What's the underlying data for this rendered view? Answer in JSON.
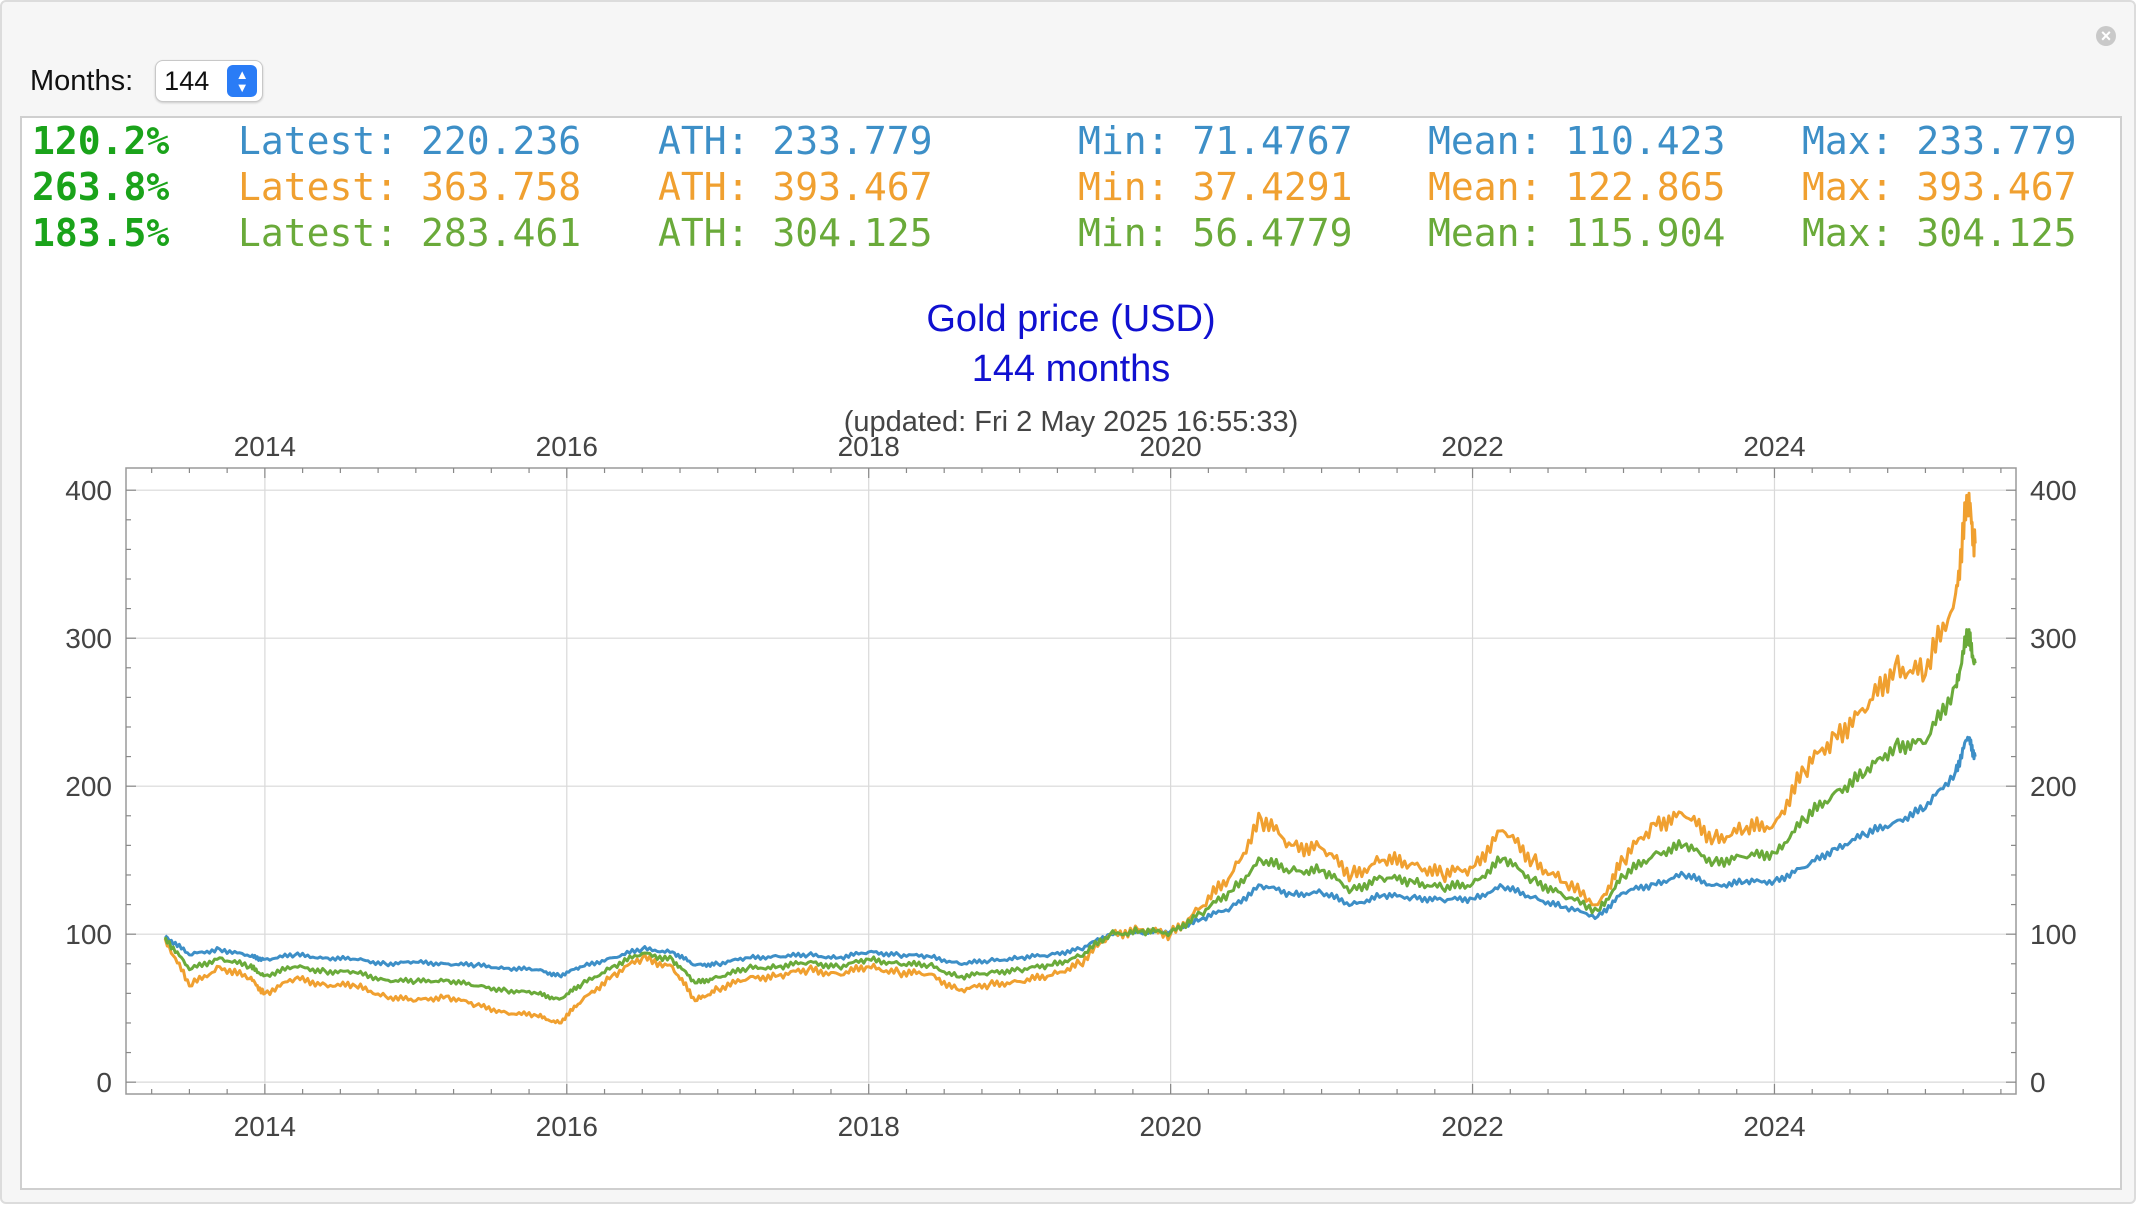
{
  "controls": {
    "months_label": "Months:",
    "months_value": "144"
  },
  "stats": [
    {
      "pct": "120.2%",
      "latest": "Latest: 220.236",
      "ath": "ATH: 233.779",
      "min": "Min: 71.4767",
      "mean": "Mean: 110.423",
      "max": "Max: 233.779",
      "color": "#3d8fc7"
    },
    {
      "pct": "263.8%",
      "latest": "Latest: 363.758",
      "ath": "ATH: 393.467",
      "min": "Min: 37.4291",
      "mean": "Mean: 122.865",
      "max": "Max: 393.467",
      "color": "#f0a030"
    },
    {
      "pct": "183.5%",
      "latest": "Latest: 283.461",
      "ath": "ATH: 304.125",
      "min": "Min: 56.4779",
      "mean": "Mean: 115.904",
      "max": "Max: 304.125",
      "color": "#6aaa3a"
    }
  ],
  "pct_color": "#1aa31a",
  "chart_data": {
    "type": "line",
    "title": "Gold price (USD)",
    "subtitle": "144 months",
    "note": "(updated: Fri 2 May 2025 16:55:33)",
    "xlim": [
      2013.08,
      2025.6
    ],
    "ylim": [
      -8,
      415
    ],
    "xticks": [
      2014,
      2016,
      2018,
      2020,
      2022,
      2024
    ],
    "xtick_labels": [
      "2014",
      "2016",
      "2018",
      "2020",
      "2022",
      "2024"
    ],
    "yticks": [
      0,
      100,
      200,
      300,
      400
    ],
    "ytick_labels": [
      "0",
      "100",
      "200",
      "300",
      "400"
    ],
    "grid": true,
    "series": [
      {
        "color": "#3d8fc7",
        "x": [
          2013.34,
          2013.5,
          2013.7,
          2013.9,
          2014.0,
          2014.2,
          2014.4,
          2014.6,
          2014.8,
          2015.0,
          2015.2,
          2015.4,
          2015.6,
          2015.8,
          2015.95,
          2016.1,
          2016.3,
          2016.5,
          2016.7,
          2016.85,
          2017.0,
          2017.2,
          2017.4,
          2017.6,
          2017.8,
          2018.0,
          2018.2,
          2018.4,
          2018.6,
          2018.8,
          2019.0,
          2019.2,
          2019.4,
          2019.6,
          2019.8,
          2020.0,
          2020.2,
          2020.4,
          2020.6,
          2020.8,
          2021.0,
          2021.2,
          2021.4,
          2021.6,
          2021.8,
          2022.0,
          2022.2,
          2022.4,
          2022.6,
          2022.83,
          2023.0,
          2023.2,
          2023.4,
          2023.6,
          2023.8,
          2024.0,
          2024.2,
          2024.4,
          2024.6,
          2024.8,
          2025.0,
          2025.2,
          2025.28,
          2025.33
        ],
        "y": [
          99,
          86,
          90,
          85,
          83,
          86,
          84,
          83,
          80,
          81,
          80,
          79,
          77,
          76,
          72,
          78,
          84,
          90,
          88,
          79,
          80,
          84,
          85,
          86,
          84,
          88,
          86,
          85,
          80,
          82,
          84,
          86,
          90,
          100,
          101,
          102,
          110,
          118,
          133,
          127,
          128,
          120,
          126,
          125,
          123,
          124,
          132,
          125,
          118,
          112,
          128,
          134,
          140,
          133,
          135,
          136,
          145,
          158,
          167,
          176,
          185,
          210,
          233,
          220
        ]
      },
      {
        "color": "#f0a030",
        "x": [
          2013.34,
          2013.5,
          2013.7,
          2013.9,
          2014.0,
          2014.2,
          2014.4,
          2014.6,
          2014.8,
          2015.0,
          2015.2,
          2015.4,
          2015.6,
          2015.8,
          2015.95,
          2016.1,
          2016.3,
          2016.5,
          2016.7,
          2016.85,
          2017.0,
          2017.2,
          2017.4,
          2017.6,
          2017.8,
          2018.0,
          2018.2,
          2018.4,
          2018.6,
          2018.8,
          2019.0,
          2019.2,
          2019.4,
          2019.6,
          2019.8,
          2020.0,
          2020.2,
          2020.4,
          2020.6,
          2020.8,
          2021.0,
          2021.2,
          2021.4,
          2021.6,
          2021.8,
          2022.0,
          2022.2,
          2022.4,
          2022.6,
          2022.83,
          2023.0,
          2023.2,
          2023.4,
          2023.6,
          2023.8,
          2024.0,
          2024.2,
          2024.4,
          2024.6,
          2024.8,
          2025.0,
          2025.2,
          2025.28,
          2025.33
        ],
        "y": [
          97,
          65,
          78,
          70,
          60,
          70,
          66,
          65,
          58,
          55,
          58,
          52,
          47,
          45,
          40,
          55,
          72,
          84,
          78,
          55,
          63,
          70,
          72,
          76,
          73,
          78,
          74,
          73,
          62,
          66,
          68,
          72,
          80,
          100,
          103,
          100,
          118,
          140,
          178,
          160,
          158,
          140,
          150,
          148,
          140,
          145,
          170,
          150,
          135,
          120,
          150,
          175,
          180,
          165,
          170,
          175,
          210,
          235,
          250,
          282,
          275,
          330,
          393,
          364
        ]
      },
      {
        "color": "#6aaa3a",
        "x": [
          2013.34,
          2013.5,
          2013.7,
          2013.9,
          2014.0,
          2014.2,
          2014.4,
          2014.6,
          2014.8,
          2015.0,
          2015.2,
          2015.4,
          2015.6,
          2015.8,
          2015.95,
          2016.1,
          2016.3,
          2016.5,
          2016.7,
          2016.85,
          2017.0,
          2017.2,
          2017.4,
          2017.6,
          2017.8,
          2018.0,
          2018.2,
          2018.4,
          2018.6,
          2018.8,
          2019.0,
          2019.2,
          2019.4,
          2019.6,
          2019.8,
          2020.0,
          2020.2,
          2020.4,
          2020.6,
          2020.8,
          2021.0,
          2021.2,
          2021.4,
          2021.6,
          2021.8,
          2022.0,
          2022.2,
          2022.4,
          2022.6,
          2022.83,
          2023.0,
          2023.2,
          2023.4,
          2023.6,
          2023.8,
          2024.0,
          2024.2,
          2024.4,
          2024.6,
          2024.8,
          2025.0,
          2025.2,
          2025.28,
          2025.33
        ],
        "y": [
          98,
          76,
          84,
          78,
          72,
          78,
          75,
          74,
          69,
          68,
          69,
          65,
          62,
          60,
          56,
          66,
          78,
          87,
          83,
          67,
          71,
          77,
          78,
          81,
          78,
          83,
          80,
          79,
          71,
          74,
          76,
          79,
          85,
          100,
          102,
          101,
          114,
          129,
          150,
          143,
          143,
          130,
          138,
          136,
          131,
          134,
          151,
          137,
          126,
          116,
          139,
          154,
          160,
          149,
          152,
          155,
          177,
          196,
          208,
          228,
          229,
          268,
          302,
          283
        ]
      }
    ]
  }
}
